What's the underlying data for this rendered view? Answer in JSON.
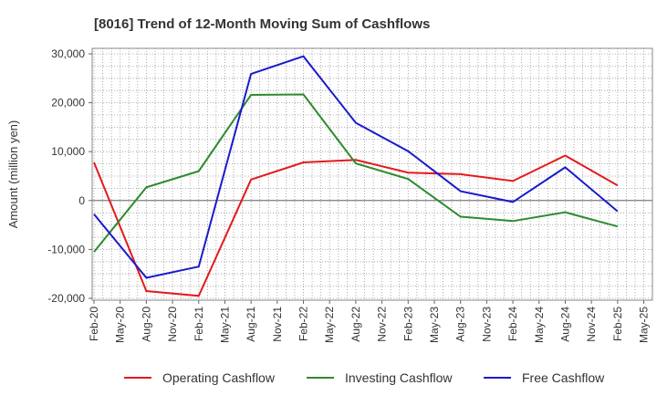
{
  "chart_data": {
    "type": "line",
    "title": "[8016]  Trend of 12-Month Moving Sum of Cashflows",
    "ylabel": "Amount (million yen)",
    "xlabel": "",
    "ylim": [
      -20000,
      30000
    ],
    "yticks": [
      30000,
      20000,
      10000,
      0,
      -10000,
      -20000
    ],
    "ytick_labels": [
      "30,000",
      "20,000",
      "10,000",
      "0",
      "-10,000",
      "-20,000"
    ],
    "categories": [
      "Feb-20",
      "May-20",
      "Aug-20",
      "Nov-20",
      "Feb-21",
      "May-21",
      "Aug-21",
      "Nov-21",
      "Feb-22",
      "May-22",
      "Aug-22",
      "Nov-22",
      "Feb-23",
      "May-23",
      "Aug-23",
      "Nov-23",
      "Feb-24",
      "May-24",
      "Aug-24",
      "Nov-24",
      "Feb-25",
      "May-25"
    ],
    "grid": true,
    "legend_position": "bottom",
    "series": [
      {
        "name": "Operating Cashflow",
        "color": "#e41a1c",
        "values": [
          7800,
          null,
          -18500,
          null,
          -19500,
          null,
          4300,
          null,
          7800,
          null,
          8300,
          null,
          5700,
          null,
          5400,
          null,
          4000,
          null,
          9200,
          null,
          3100,
          null
        ]
      },
      {
        "name": "Investing Cashflow",
        "color": "#2e8b2e",
        "values": [
          -10500,
          null,
          2700,
          null,
          6000,
          null,
          21600,
          null,
          21700,
          null,
          7600,
          null,
          4400,
          null,
          -3300,
          null,
          -4200,
          null,
          -2400,
          null,
          -5300,
          null
        ]
      },
      {
        "name": "Free Cashflow",
        "color": "#1a1acc",
        "values": [
          -2800,
          null,
          -15800,
          null,
          -13500,
          null,
          25900,
          null,
          29500,
          null,
          15900,
          null,
          10100,
          null,
          1900,
          null,
          -300,
          null,
          6800,
          null,
          -2200,
          null
        ]
      }
    ]
  }
}
